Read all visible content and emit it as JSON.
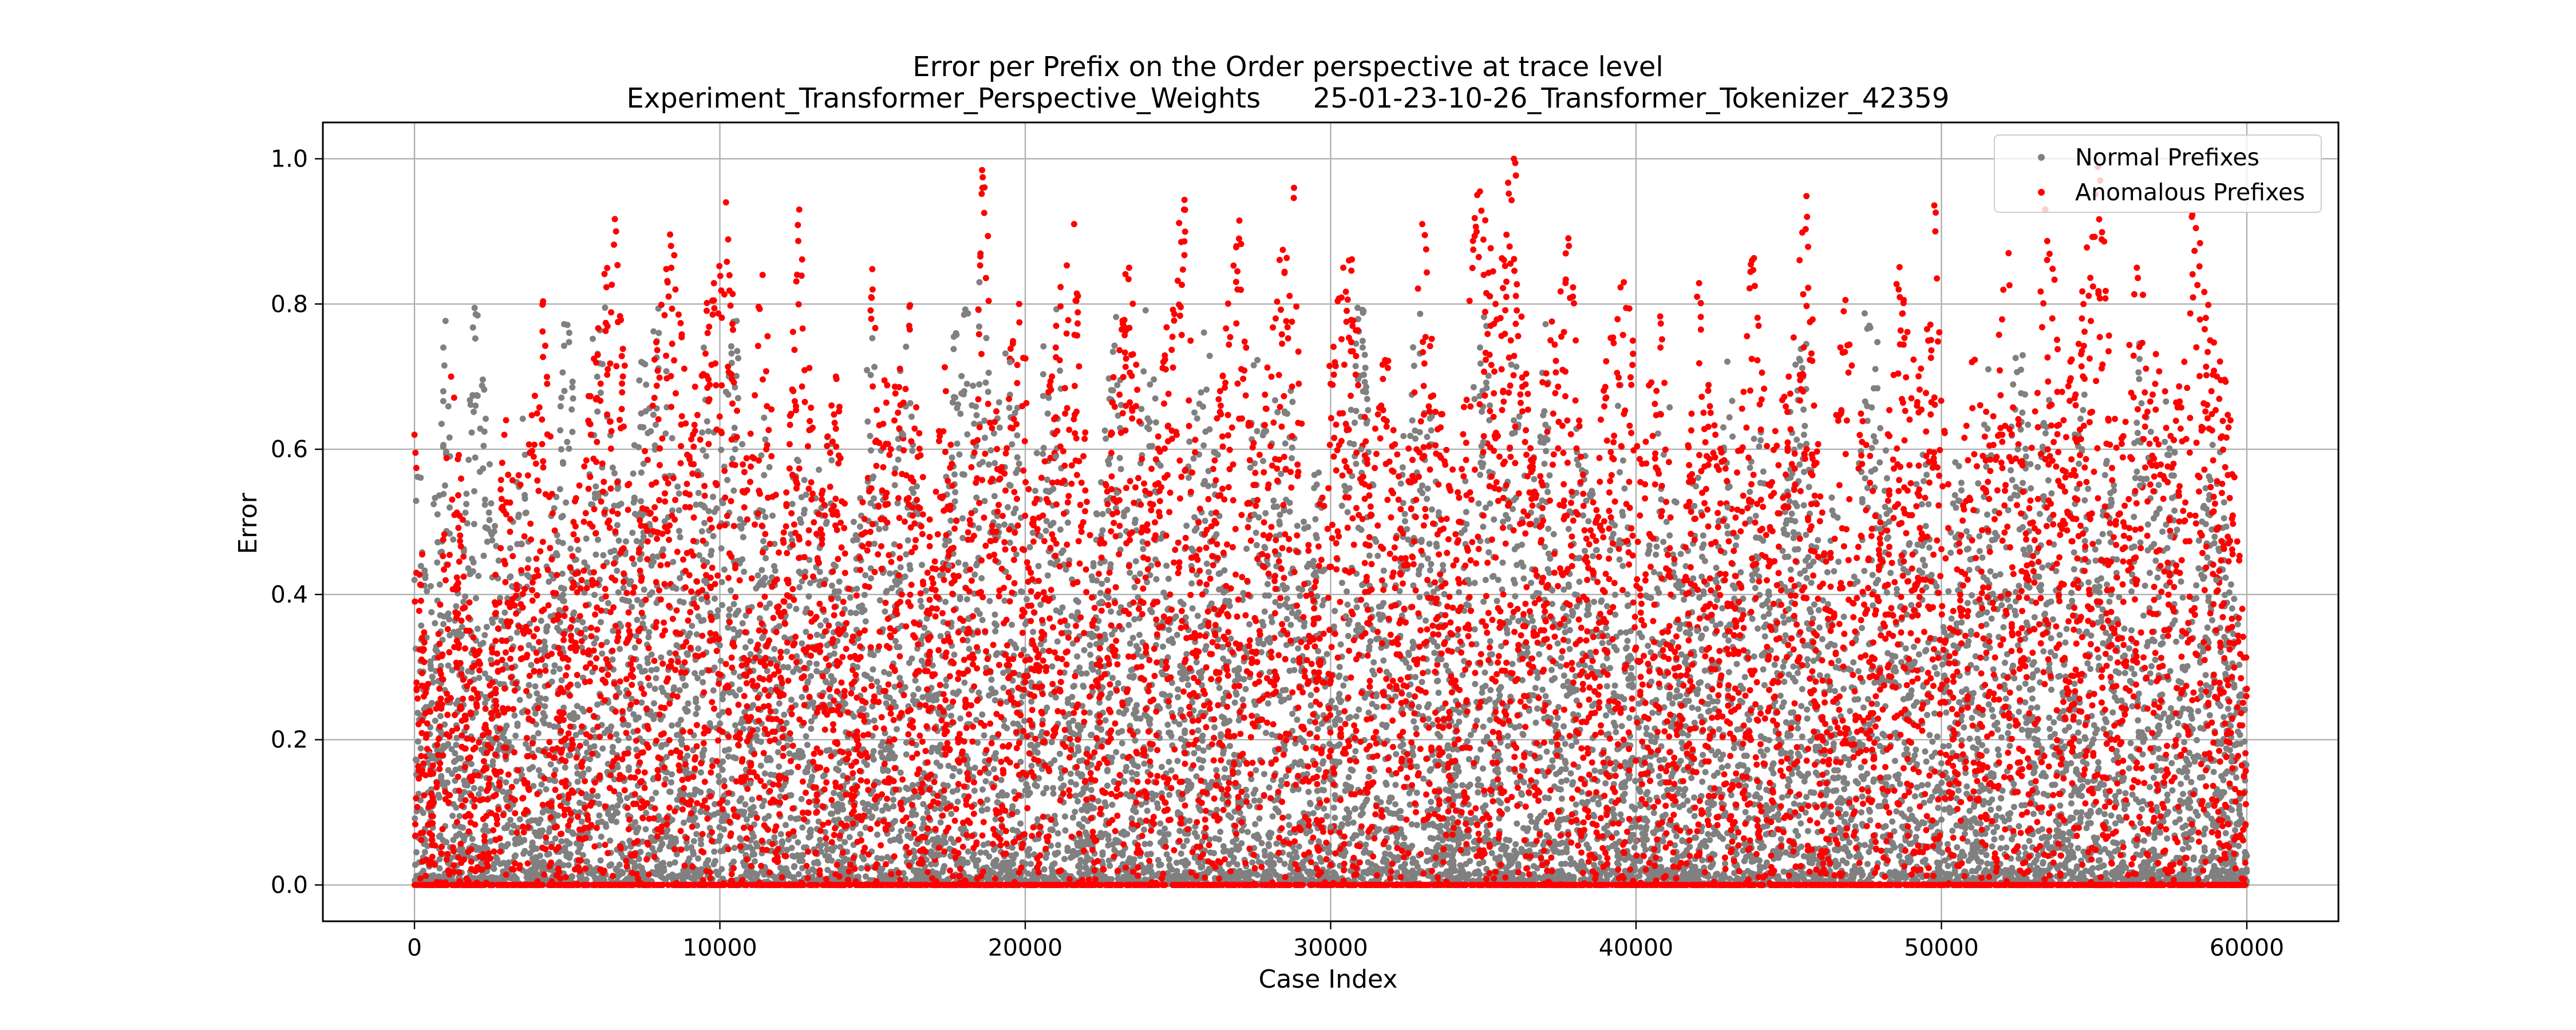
{
  "chart_data": {
    "type": "scatter",
    "title": "Error per Prefix on the Order perspective at trace level",
    "subtitle": "Experiment_Transformer_Perspective_Weights      25-01-23-10-26_Transformer_Tokenizer_42359",
    "xlabel": "Case Index",
    "ylabel": "Error",
    "xlim": [
      -3000,
      63000
    ],
    "ylim": [
      -0.05,
      1.05
    ],
    "xticks": [
      0,
      10000,
      20000,
      30000,
      40000,
      50000,
      60000
    ],
    "xtick_labels": [
      "0",
      "10000",
      "20000",
      "30000",
      "40000",
      "50000",
      "60000"
    ],
    "yticks": [
      0.0,
      0.2,
      0.4,
      0.6,
      0.8,
      1.0
    ],
    "ytick_labels": [
      "0.0",
      "0.2",
      "0.4",
      "0.6",
      "0.8",
      "1.0"
    ],
    "grid": true,
    "legend_position": "top-right",
    "series": [
      {
        "name": "Normal Prefixes",
        "color": "#808080",
        "description_points": [
          [
            0,
            0.42
          ],
          [
            500,
            0.18
          ],
          [
            1000,
            0.55
          ],
          [
            1500,
            0.08
          ],
          [
            2000,
            0.66
          ],
          [
            2500,
            0.31
          ],
          [
            3000,
            0.12
          ],
          [
            3500,
            0.47
          ],
          [
            4000,
            0.05
          ],
          [
            4500,
            0.28
          ],
          [
            5000,
            0.61
          ],
          [
            5500,
            0.15
          ],
          [
            6000,
            0.73
          ],
          [
            6500,
            0.35
          ],
          [
            7000,
            0.22
          ],
          [
            7500,
            0.58
          ],
          [
            8000,
            0.76
          ],
          [
            8500,
            0.41
          ],
          [
            9000,
            0.09
          ],
          [
            9500,
            0.52
          ],
          [
            10000,
            0.33
          ],
          [
            10500,
            0.6
          ],
          [
            11000,
            0.14
          ],
          [
            11500,
            0.45
          ],
          [
            12000,
            0.07
          ],
          [
            12500,
            0.38
          ],
          [
            13000,
            0.25
          ],
          [
            13500,
            0.5
          ],
          [
            14000,
            0.11
          ],
          [
            14500,
            0.3
          ],
          [
            15000,
            0.56
          ],
          [
            15500,
            0.19
          ],
          [
            16000,
            0.62
          ],
          [
            16500,
            0.27
          ],
          [
            17000,
            0.04
          ],
          [
            17500,
            0.44
          ],
          [
            18000,
            0.68
          ],
          [
            18500,
            0.83
          ],
          [
            19000,
            0.36
          ],
          [
            19500,
            0.72
          ],
          [
            20000,
            0.13
          ],
          [
            20500,
            0.48
          ],
          [
            21000,
            0.59
          ],
          [
            21500,
            0.21
          ],
          [
            22000,
            0.06
          ],
          [
            22500,
            0.39
          ],
          [
            23000,
            0.54
          ],
          [
            23500,
            0.17
          ],
          [
            24000,
            0.63
          ],
          [
            24500,
            0.29
          ],
          [
            25000,
            0.1
          ],
          [
            25500,
            0.46
          ],
          [
            26000,
            0.57
          ],
          [
            26500,
            0.23
          ],
          [
            27000,
            0.05
          ],
          [
            27500,
            0.51
          ],
          [
            28000,
            0.34
          ],
          [
            28500,
            0.65
          ],
          [
            29000,
            0.2
          ],
          [
            29500,
            0.43
          ],
          [
            30000,
            0.08
          ],
          [
            30500,
            0.37
          ],
          [
            31000,
            0.6
          ],
          [
            31500,
            0.26
          ],
          [
            32000,
            0.12
          ],
          [
            32500,
            0.49
          ],
          [
            33000,
            0.55
          ],
          [
            33500,
            0.31
          ],
          [
            34000,
            0.03
          ],
          [
            34500,
            0.42
          ],
          [
            35000,
            0.61
          ],
          [
            35500,
            0.18
          ],
          [
            36000,
            0.53
          ],
          [
            36500,
            0.24
          ],
          [
            37000,
            0.58
          ],
          [
            37500,
            0.09
          ],
          [
            38000,
            0.4
          ],
          [
            38500,
            0.32
          ],
          [
            39000,
            0.14
          ],
          [
            39500,
            0.47
          ],
          [
            40000,
            0.06
          ],
          [
            40500,
            0.28
          ],
          [
            41000,
            0.5
          ],
          [
            41500,
            0.21
          ],
          [
            42000,
            0.35
          ],
          [
            42500,
            0.11
          ],
          [
            43000,
            0.52
          ],
          [
            43500,
            0.27
          ],
          [
            44000,
            0.45
          ],
          [
            44500,
            0.07
          ],
          [
            45000,
            0.38
          ],
          [
            45500,
            0.62
          ],
          [
            46000,
            0.19
          ],
          [
            46500,
            0.33
          ],
          [
            47000,
            0.04
          ],
          [
            47500,
            0.56
          ],
          [
            48000,
            0.49
          ],
          [
            48500,
            0.15
          ],
          [
            49000,
            0.3
          ],
          [
            49500,
            0.41
          ],
          [
            50000,
            0.09
          ],
          [
            50500,
            0.36
          ],
          [
            51000,
            0.23
          ],
          [
            51500,
            0.51
          ],
          [
            52000,
            0.13
          ],
          [
            52500,
            0.6
          ],
          [
            53000,
            0.29
          ],
          [
            53500,
            0.44
          ],
          [
            54000,
            0.05
          ],
          [
            54500,
            0.58
          ],
          [
            55000,
            0.22
          ],
          [
            55500,
            0.39
          ],
          [
            56000,
            0.11
          ],
          [
            56500,
            0.55
          ],
          [
            57000,
            0.31
          ],
          [
            57500,
            0.48
          ],
          [
            58000,
            0.07
          ],
          [
            58500,
            0.26
          ],
          [
            59000,
            0.42
          ],
          [
            59500,
            0.17
          ],
          [
            60000,
            0.04
          ]
        ]
      },
      {
        "name": "Anomalous Prefixes",
        "color": "#ff0000",
        "description_points": [
          [
            0,
            0.62
          ],
          [
            600,
            0.12
          ],
          [
            1200,
            0.7
          ],
          [
            1800,
            0.35
          ],
          [
            2400,
            0.21
          ],
          [
            3000,
            0.64
          ],
          [
            3600,
            0.48
          ],
          [
            4200,
            0.8
          ],
          [
            4800,
            0.27
          ],
          [
            5400,
            0.55
          ],
          [
            6000,
            0.73
          ],
          [
            6600,
            0.9
          ],
          [
            7200,
            0.41
          ],
          [
            7800,
            0.66
          ],
          [
            8400,
            0.88
          ],
          [
            9000,
            0.59
          ],
          [
            9600,
            0.76
          ],
          [
            10200,
            0.94
          ],
          [
            10800,
            0.52
          ],
          [
            11400,
            0.84
          ],
          [
            12000,
            0.37
          ],
          [
            12600,
            0.93
          ],
          [
            13200,
            0.45
          ],
          [
            13800,
            0.7
          ],
          [
            14400,
            0.28
          ],
          [
            15000,
            0.82
          ],
          [
            15600,
            0.6
          ],
          [
            16200,
            0.77
          ],
          [
            16800,
            0.43
          ],
          [
            17400,
            0.68
          ],
          [
            18000,
            0.31
          ],
          [
            18600,
            0.96
          ],
          [
            19200,
            0.57
          ],
          [
            19800,
            0.8
          ],
          [
            20400,
            0.49
          ],
          [
            21000,
            0.74
          ],
          [
            21600,
            0.91
          ],
          [
            22200,
            0.36
          ],
          [
            22800,
            0.62
          ],
          [
            23400,
            0.85
          ],
          [
            24000,
            0.47
          ],
          [
            24600,
            0.71
          ],
          [
            25200,
            0.93
          ],
          [
            25800,
            0.4
          ],
          [
            26400,
            0.66
          ],
          [
            27000,
            0.89
          ],
          [
            27600,
            0.53
          ],
          [
            28200,
            0.78
          ],
          [
            28800,
            0.96
          ],
          [
            29400,
            0.34
          ],
          [
            30000,
            0.69
          ],
          [
            30600,
            0.86
          ],
          [
            31200,
            0.58
          ],
          [
            31800,
            0.72
          ],
          [
            32400,
            0.44
          ],
          [
            33000,
            0.91
          ],
          [
            33600,
            0.63
          ],
          [
            34200,
            0.5
          ],
          [
            34800,
            0.95
          ],
          [
            35400,
            0.8
          ],
          [
            36000,
            1.0
          ],
          [
            36600,
            0.54
          ],
          [
            37200,
            0.75
          ],
          [
            37800,
            0.88
          ],
          [
            38400,
            0.42
          ],
          [
            39000,
            0.67
          ],
          [
            39600,
            0.83
          ],
          [
            40200,
            0.58
          ],
          [
            40800,
            0.74
          ],
          [
            41400,
            0.3
          ],
          [
            42000,
            0.81
          ],
          [
            42600,
            0.62
          ],
          [
            43200,
            0.46
          ],
          [
            43800,
            0.86
          ],
          [
            44400,
            0.55
          ],
          [
            45000,
            0.7
          ],
          [
            45600,
            0.92
          ],
          [
            46200,
            0.38
          ],
          [
            46800,
            0.79
          ],
          [
            47400,
            0.61
          ],
          [
            48000,
            0.47
          ],
          [
            48600,
            0.82
          ],
          [
            49200,
            0.66
          ],
          [
            49800,
            0.9
          ],
          [
            50400,
            0.35
          ],
          [
            51000,
            0.72
          ],
          [
            51600,
            0.57
          ],
          [
            52200,
            0.87
          ],
          [
            52800,
            0.44
          ],
          [
            53400,
            0.93
          ],
          [
            54000,
            0.64
          ],
          [
            54600,
            0.78
          ],
          [
            55200,
            0.97
          ],
          [
            55800,
            0.51
          ],
          [
            56400,
            0.85
          ],
          [
            57000,
            0.69
          ],
          [
            57600,
            0.58
          ],
          [
            58200,
            0.92
          ],
          [
            58800,
            0.75
          ],
          [
            59400,
            0.63
          ],
          [
            60000,
            0.27
          ]
        ]
      }
    ]
  }
}
